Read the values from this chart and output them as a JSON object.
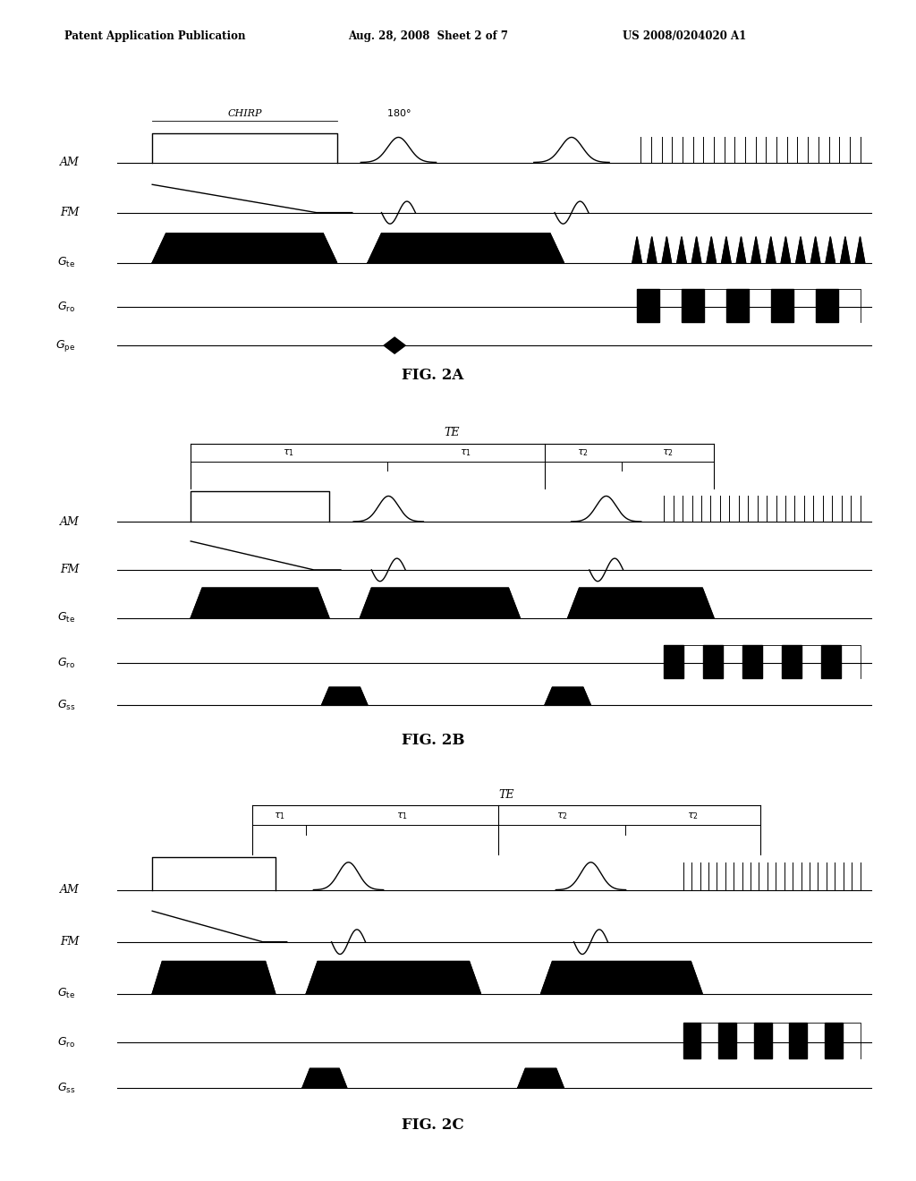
{
  "header_left": "Patent Application Publication",
  "header_mid": "Aug. 28, 2008  Sheet 2 of 7",
  "header_right": "US 2008/0204020 A1",
  "fig_labels": [
    "FIG. 2A",
    "FIG. 2B",
    "FIG. 2C"
  ],
  "background": "#ffffff"
}
